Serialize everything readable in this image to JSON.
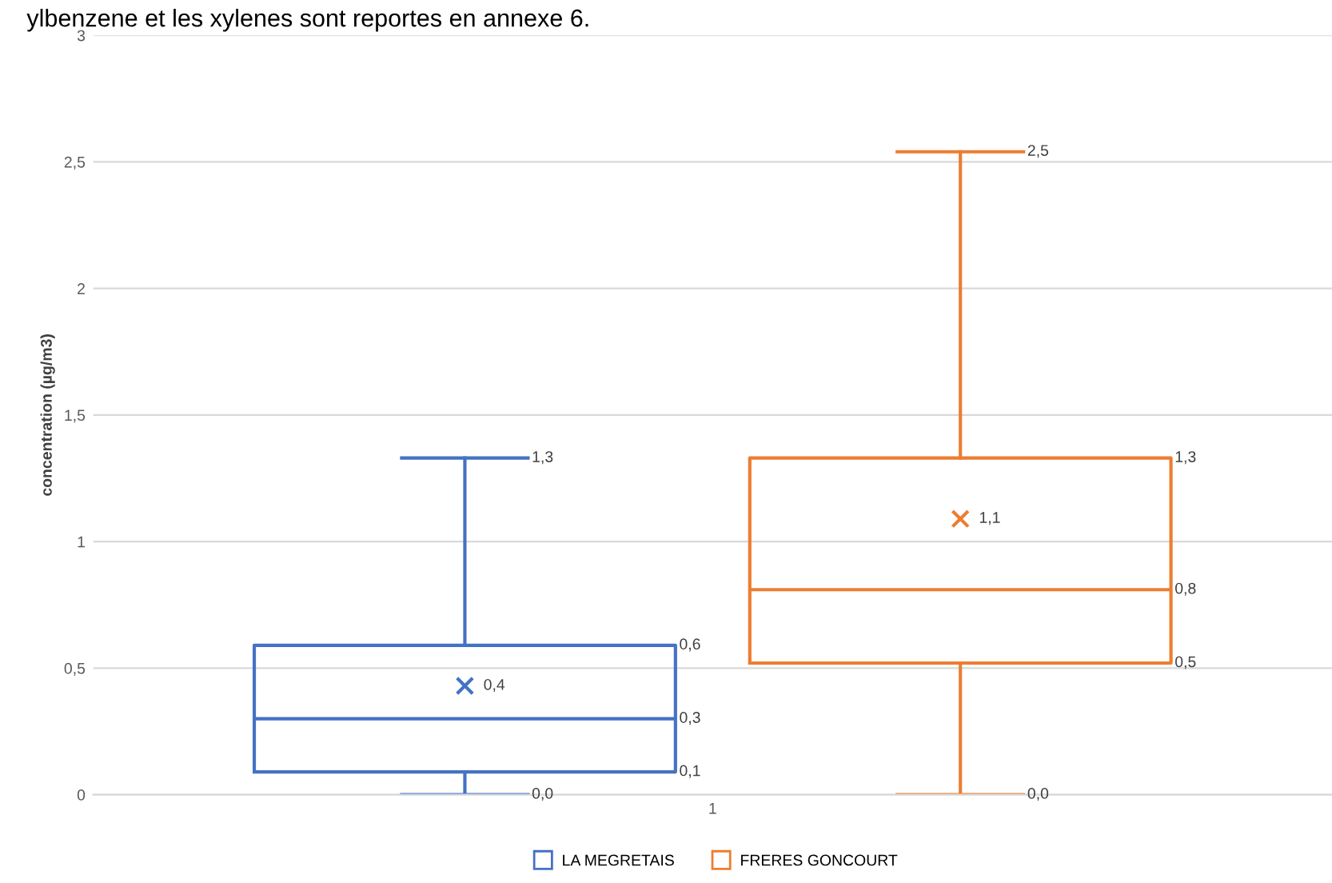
{
  "chart_data": {
    "type": "box",
    "ylabel": "concentration (µg/m3)",
    "categories": [
      "1"
    ],
    "annotations": [
      "ylbenzene et les xylenes sont reportes en annexe 6."
    ],
    "series": [
      {
        "name": "LA MEGRETAIS",
        "color": "#4472c4",
        "boxes": [
          {
            "low": 0.0,
            "q1": 0.09,
            "median": 0.3,
            "q3": 0.59,
            "high": 1.33,
            "mean": 0.43
          }
        ],
        "value_labels": [
          [
            "0,0",
            "0,1",
            "0,3",
            "0,6",
            "1,3",
            "0,4"
          ]
        ]
      },
      {
        "name": "FRERES GONCOURT",
        "color": "#ed7d31",
        "boxes": [
          {
            "low": 0.0,
            "q1": 0.52,
            "median": 0.81,
            "q3": 1.33,
            "high": 2.54,
            "mean": 1.09
          }
        ],
        "value_labels": [
          [
            "0,0",
            "0,5",
            "0,8",
            "1,3",
            "2,5",
            "1,1"
          ]
        ]
      }
    ],
    "ylim": [
      0,
      3
    ],
    "yticks": [
      0,
      {
        "value": 0.5,
        "label": "0,5"
      },
      1,
      {
        "value": 1.5,
        "label": "1,5"
      },
      2,
      {
        "value": 2.5,
        "label": "2,5"
      },
      3
    ],
    "grid": "y",
    "legend": "bottom",
    "marker": "cross"
  }
}
